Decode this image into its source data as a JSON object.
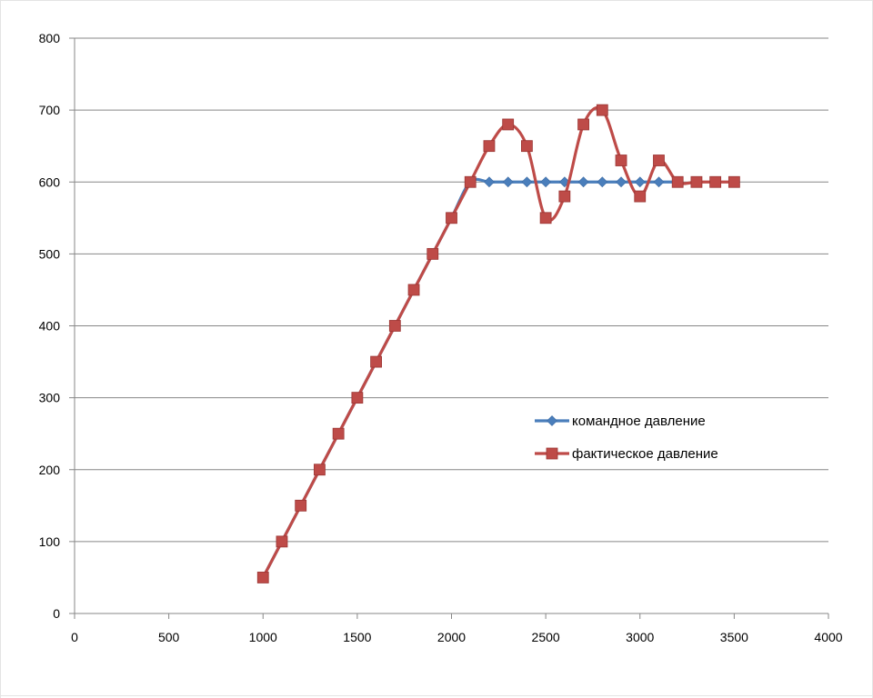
{
  "chart_data": {
    "type": "line",
    "title": "",
    "xlabel": "",
    "ylabel": "",
    "xlim": [
      0,
      4000
    ],
    "ylim": [
      0,
      800
    ],
    "x_ticks": [
      0,
      500,
      1000,
      1500,
      2000,
      2500,
      3000,
      3500,
      4000
    ],
    "y_ticks": [
      0,
      100,
      200,
      300,
      400,
      500,
      600,
      700,
      800
    ],
    "grid": "horizontal",
    "legend_position": "right-middle",
    "smooth": true,
    "series": [
      {
        "name": "командное давление",
        "color": "#4a7ebb",
        "marker": "diamond",
        "x": [
          1000,
          1100,
          1200,
          1300,
          1400,
          1500,
          1600,
          1700,
          1800,
          1900,
          2000,
          2100,
          2200,
          2300,
          2400,
          2500,
          2600,
          2700,
          2800,
          2900,
          3000,
          3100,
          3200
        ],
        "y": [
          50,
          100,
          150,
          200,
          250,
          300,
          350,
          400,
          450,
          500,
          550,
          600,
          600,
          600,
          600,
          600,
          600,
          600,
          600,
          600,
          600,
          600,
          600
        ]
      },
      {
        "name": "фактическое давление",
        "color": "#be4b48",
        "marker": "square",
        "x": [
          1000,
          1100,
          1200,
          1300,
          1400,
          1500,
          1600,
          1700,
          1800,
          1900,
          2000,
          2100,
          2200,
          2300,
          2400,
          2500,
          2600,
          2700,
          2800,
          2900,
          3000,
          3100,
          3200,
          3300,
          3400,
          3500
        ],
        "y": [
          50,
          100,
          150,
          200,
          250,
          300,
          350,
          400,
          450,
          500,
          550,
          600,
          650,
          680,
          650,
          550,
          580,
          680,
          700,
          630,
          580,
          630,
          600,
          600,
          600,
          600
        ]
      }
    ]
  }
}
